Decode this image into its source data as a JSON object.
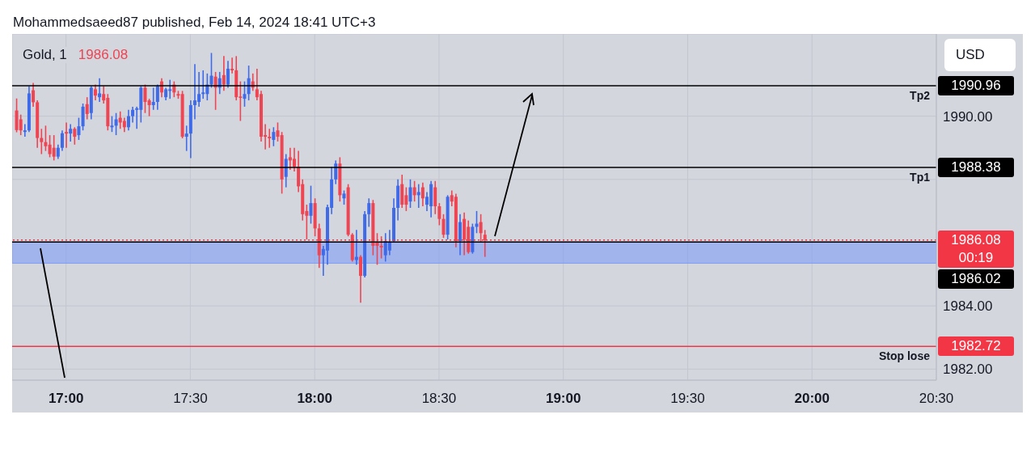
{
  "chart_data": {
    "type": "candlestick",
    "title": "Mohammedsaeed87 published, Feb 14, 2024 18:41 UTC+3",
    "subtitle": "Gold, 1",
    "annotations": [
      "1986.08",
      "USD",
      "00:19",
      {
        "text": "Tp2",
        "y": 1990.96
      },
      {
        "text": "Tp1",
        "y": 1988.38
      },
      {
        "text": "Stop lose",
        "y": 1982.72
      }
    ],
    "x": [
      "2024-02-14T16:48",
      "2024-02-14T16:49",
      "2024-02-14T16:50",
      "2024-02-14T16:51",
      "2024-02-14T16:52",
      "2024-02-14T16:53",
      "2024-02-14T16:54",
      "2024-02-14T16:55",
      "2024-02-14T16:56",
      "2024-02-14T16:57",
      "2024-02-14T16:58",
      "2024-02-14T16:59",
      "2024-02-14T17:00",
      "2024-02-14T17:01",
      "2024-02-14T17:02",
      "2024-02-14T17:03",
      "2024-02-14T17:04",
      "2024-02-14T17:05",
      "2024-02-14T17:06",
      "2024-02-14T17:07",
      "2024-02-14T17:08",
      "2024-02-14T17:09",
      "2024-02-14T17:10",
      "2024-02-14T17:11",
      "2024-02-14T17:12",
      "2024-02-14T17:13",
      "2024-02-14T17:14",
      "2024-02-14T17:15",
      "2024-02-14T17:16",
      "2024-02-14T17:17",
      "2024-02-14T17:18",
      "2024-02-14T17:19",
      "2024-02-14T17:20",
      "2024-02-14T17:21",
      "2024-02-14T17:22",
      "2024-02-14T17:23",
      "2024-02-14T17:24",
      "2024-02-14T17:25",
      "2024-02-14T17:26",
      "2024-02-14T17:27",
      "2024-02-14T17:28",
      "2024-02-14T17:29",
      "2024-02-14T17:30",
      "2024-02-14T17:31",
      "2024-02-14T17:32",
      "2024-02-14T17:33",
      "2024-02-14T17:34",
      "2024-02-14T17:35",
      "2024-02-14T17:36",
      "2024-02-14T17:37",
      "2024-02-14T17:38",
      "2024-02-14T17:39",
      "2024-02-14T17:40",
      "2024-02-14T17:41",
      "2024-02-14T17:42",
      "2024-02-14T17:43",
      "2024-02-14T17:44",
      "2024-02-14T17:45",
      "2024-02-14T17:46",
      "2024-02-14T17:47",
      "2024-02-14T17:48",
      "2024-02-14T17:49",
      "2024-02-14T17:50",
      "2024-02-14T17:51",
      "2024-02-14T17:52",
      "2024-02-14T17:53",
      "2024-02-14T17:54",
      "2024-02-14T17:55",
      "2024-02-14T17:56",
      "2024-02-14T17:57",
      "2024-02-14T17:58",
      "2024-02-14T17:59",
      "2024-02-14T18:00",
      "2024-02-14T18:01",
      "2024-02-14T18:02",
      "2024-02-14T18:03",
      "2024-02-14T18:04",
      "2024-02-14T18:05",
      "2024-02-14T18:06",
      "2024-02-14T18:07",
      "2024-02-14T18:08",
      "2024-02-14T18:09",
      "2024-02-14T18:10",
      "2024-02-14T18:11",
      "2024-02-14T18:12",
      "2024-02-14T18:13",
      "2024-02-14T18:14",
      "2024-02-14T18:15",
      "2024-02-14T18:16",
      "2024-02-14T18:17",
      "2024-02-14T18:18",
      "2024-02-14T18:19",
      "2024-02-14T18:20",
      "2024-02-14T18:21",
      "2024-02-14T18:22",
      "2024-02-14T18:23",
      "2024-02-14T18:24",
      "2024-02-14T18:25",
      "2024-02-14T18:26",
      "2024-02-14T18:27",
      "2024-02-14T18:28",
      "2024-02-14T18:29",
      "2024-02-14T18:30",
      "2024-02-14T18:31",
      "2024-02-14T18:32",
      "2024-02-14T18:33",
      "2024-02-14T18:34",
      "2024-02-14T18:35",
      "2024-02-14T18:36",
      "2024-02-14T18:37",
      "2024-02-14T18:38",
      "2024-02-14T18:39",
      "2024-02-14T18:40",
      "2024-02-14T18:41"
    ],
    "ohlc": [
      [
        1990.18,
        1990.56,
        1989.49,
        1989.56
      ],
      [
        1989.9,
        1990.05,
        1989.4,
        1989.55
      ],
      [
        1989.5,
        1989.75,
        1989.35,
        1989.55
      ],
      [
        1989.55,
        1990.95,
        1989.5,
        1990.72
      ],
      [
        1990.82,
        1991.05,
        1990.3,
        1990.44
      ],
      [
        1990.44,
        1990.5,
        1989,
        1989.31
      ],
      [
        1989.31,
        1989.6,
        1988.8,
        1989.18
      ],
      [
        1989.18,
        1989.7,
        1988.9,
        1989.05
      ],
      [
        1989.1,
        1989.4,
        1988.7,
        1988.8
      ],
      [
        1989,
        1989.4,
        1988.6,
        1988.72
      ],
      [
        1988.72,
        1989.1,
        1988.65,
        1989
      ],
      [
        1989,
        1989.55,
        1988.9,
        1989.46
      ],
      [
        1989.5,
        1989.8,
        1989,
        1989.45
      ],
      [
        1989.45,
        1989.75,
        1989.2,
        1989.6
      ],
      [
        1989.6,
        1989.65,
        1989.1,
        1989.35
      ],
      [
        1989.4,
        1989.95,
        1989.25,
        1989.68
      ],
      [
        1989.68,
        1990.4,
        1989.55,
        1990.3
      ],
      [
        1990.38,
        1990.6,
        1989.9,
        1990.07
      ],
      [
        1990.1,
        1990.95,
        1989.9,
        1990.9
      ],
      [
        1990.85,
        1991,
        1990.5,
        1990.65
      ],
      [
        1990.6,
        1991.2,
        1990.45,
        1990.72
      ],
      [
        1990.7,
        1990.95,
        1990.4,
        1990.5
      ],
      [
        1990.58,
        1990.7,
        1989.55,
        1989.68
      ],
      [
        1989.65,
        1990,
        1989.5,
        1989.7
      ],
      [
        1989.7,
        1990.1,
        1989.4,
        1989.9
      ],
      [
        1989.95,
        1990.15,
        1989.6,
        1989.8
      ],
      [
        1989.85,
        1989.95,
        1989.5,
        1989.65
      ],
      [
        1989.65,
        1990.2,
        1989.55,
        1990
      ],
      [
        1990,
        1990.3,
        1989.8,
        1990.2
      ],
      [
        1990.2,
        1990.3,
        1989.6,
        1990.25
      ],
      [
        1990.2,
        1990.95,
        1989.8,
        1990.9
      ],
      [
        1990.9,
        1991,
        1990.1,
        1990.45
      ],
      [
        1990.5,
        1990.55,
        1990,
        1990.35
      ],
      [
        1990.35,
        1990.9,
        1990.2,
        1990.45
      ],
      [
        1990.45,
        1991,
        1990.2,
        1990.95
      ],
      [
        1991.1,
        1991.2,
        1990.6,
        1990.75
      ],
      [
        1990.6,
        1990.9,
        1990.5,
        1990.85
      ],
      [
        1990.8,
        1991.15,
        1990.55,
        1990.85
      ],
      [
        1991,
        1991.1,
        1990.6,
        1990.75
      ],
      [
        1990.7,
        1990.8,
        1990.55,
        1990.65
      ],
      [
        1990.7,
        1990.8,
        1989.3,
        1989.35
      ],
      [
        1989.35,
        1989.7,
        1988.9,
        1989.45
      ],
      [
        1989.45,
        1990.5,
        1988.67,
        1990.35
      ],
      [
        1990.35,
        1991.65,
        1989.9,
        1990.5
      ],
      [
        1990.45,
        1991.4,
        1990.3,
        1990.7
      ],
      [
        1990.7,
        1991.45,
        1990.55,
        1990.75
      ],
      [
        1990.7,
        1991.35,
        1990.5,
        1991
      ],
      [
        1991,
        1992,
        1990.9,
        1991.28
      ],
      [
        1991.25,
        1991.4,
        1990.2,
        1990.9
      ],
      [
        1990.9,
        1991.4,
        1990.7,
        1991.2
      ],
      [
        1991.3,
        1991.9,
        1990.8,
        1991
      ],
      [
        1991,
        1991.75,
        1990.9,
        1991.5
      ],
      [
        1991.5,
        1991.85,
        1991.35,
        1991.45
      ],
      [
        1991.45,
        1991.9,
        1990.5,
        1990.6
      ],
      [
        1990.62,
        1991.1,
        1989.85,
        1990.58
      ],
      [
        1990.55,
        1991.1,
        1990.3,
        1990.7
      ],
      [
        1990.7,
        1991.6,
        1990.5,
        1991.2
      ],
      [
        1991.1,
        1991.35,
        1990.8,
        1990.9
      ],
      [
        1990.85,
        1991.5,
        1990.5,
        1990.6
      ],
      [
        1990.7,
        1990.8,
        1989.2,
        1989.35
      ],
      [
        1989.4,
        1989.75,
        1988.95,
        1989.35
      ],
      [
        1989.35,
        1989.6,
        1989,
        1989.3
      ],
      [
        1989.25,
        1989.65,
        1989.05,
        1989.5
      ],
      [
        1989.55,
        1989.8,
        1989.2,
        1989.35
      ],
      [
        1989.4,
        1989.5,
        1987.55,
        1988
      ],
      [
        1988.08,
        1988.8,
        1987.75,
        1988.65
      ],
      [
        1988.7,
        1989,
        1988.3,
        1988.6
      ],
      [
        1988.65,
        1989,
        1988.25,
        1988.4
      ],
      [
        1988.4,
        1988.9,
        1987.6,
        1987.78
      ],
      [
        1987.85,
        1988,
        1986.7,
        1986.9
      ],
      [
        1987,
        1987.2,
        1986.1,
        1986.85
      ],
      [
        1986.85,
        1987.8,
        1986.6,
        1987.25
      ],
      [
        1987.25,
        1987.4,
        1986.2,
        1986.45
      ],
      [
        1986.45,
        1986.6,
        1985.2,
        1985.6
      ],
      [
        1985.6,
        1985.9,
        1984.95,
        1985.8
      ],
      [
        1985.75,
        1987.2,
        1985.3,
        1987.12
      ],
      [
        1987.1,
        1988.4,
        1986.9,
        1988
      ],
      [
        1988,
        1988.6,
        1987.85,
        1988.5
      ],
      [
        1988.5,
        1988.7,
        1987.3,
        1987.5
      ],
      [
        1987.4,
        1987.65,
        1987.2,
        1987.55
      ],
      [
        1987.75,
        1987.85,
        1986.2,
        1986.25
      ],
      [
        1986.25,
        1986.3,
        1985.4,
        1985.45
      ],
      [
        1985.45,
        1986.4,
        1985.3,
        1985.55
      ],
      [
        1985.55,
        1985.6,
        1984.1,
        1984.95
      ],
      [
        1984.95,
        1987,
        1984.9,
        1986.9
      ],
      [
        1986.9,
        1987.4,
        1986.5,
        1987.25
      ],
      [
        1987.25,
        1987.35,
        1985.6,
        1985.9
      ],
      [
        1986,
        1986.3,
        1985.3,
        1985.9
      ],
      [
        1985.9,
        1986.2,
        1985.5,
        1985.85
      ],
      [
        1985.6,
        1986.3,
        1985.4,
        1986.05
      ],
      [
        1985.75,
        1986.4,
        1985.6,
        1986
      ],
      [
        1986.05,
        1987.4,
        1986,
        1987.1
      ],
      [
        1987.1,
        1988,
        1986.7,
        1987.8
      ],
      [
        1987.85,
        1988.15,
        1987.1,
        1987.2
      ],
      [
        1987.5,
        1987.75,
        1987,
        1987.2
      ],
      [
        1987.3,
        1988,
        1987.1,
        1987.75
      ],
      [
        1987.75,
        1987.95,
        1987.3,
        1987.5
      ],
      [
        1987.5,
        1987.85,
        1987.1,
        1987.6
      ],
      [
        1987.75,
        1987.9,
        1987.15,
        1987.4
      ],
      [
        1987.2,
        1987.6,
        1987,
        1987.45
      ],
      [
        1987.15,
        1987.95,
        1986.8,
        1987.85
      ],
      [
        1987.75,
        1987.95,
        1986.9,
        1987.15
      ],
      [
        1987.15,
        1987.25,
        1986.55,
        1986.75
      ],
      [
        1986.75,
        1986.9,
        1986.15,
        1986.25
      ],
      [
        1986.25,
        1987.5,
        1986.1,
        1987.45
      ],
      [
        1987.5,
        1987.65,
        1987.15,
        1987.3
      ],
      [
        1987.45,
        1987.55,
        1985.85,
        1986.05
      ],
      [
        1986.05,
        1986.9,
        1985.6,
        1986.65
      ],
      [
        1986.75,
        1986.95,
        1985.6,
        1986.1
      ],
      [
        1986.5,
        1986.7,
        1985.65,
        1985.7
      ],
      [
        1985.7,
        1986.6,
        1985.65,
        1986.5
      ],
      [
        1986.5,
        1987,
        1986.3,
        1986.6
      ],
      [
        1986.65,
        1986.9,
        1986,
        1986.3
      ],
      [
        1986.25,
        1986.4,
        1985.55,
        1986.08
      ]
    ],
    "xlim": [
      "2024-02-14T16:47",
      "2024-02-14T20:30"
    ],
    "xticks": [
      {
        "value": "2024-02-14T17:00",
        "label": "17:00"
      },
      {
        "value": "2024-02-14T17:30",
        "label": "17:30"
      },
      {
        "value": "2024-02-14T18:00",
        "label": "18:00"
      },
      {
        "value": "2024-02-14T18:30",
        "label": "18:30"
      },
      {
        "value": "2024-02-14T19:00",
        "label": "19:00"
      },
      {
        "value": "2024-02-14T19:30",
        "label": "19:30"
      },
      {
        "value": "2024-02-14T20:00",
        "label": "20:00"
      },
      {
        "value": "2024-02-14T20:30",
        "label": "20:30"
      }
    ],
    "ylim": [
      1981.65,
      1992.6
    ],
    "yticks": [
      {
        "value": 1982,
        "label": "1982.00"
      },
      {
        "value": 1984,
        "label": "1984.00"
      },
      {
        "value": 1988,
        "label": null
      },
      {
        "value": 1990,
        "label": "1990.00"
      }
    ],
    "grid": true,
    "ref_lines": [
      {
        "axis": "y",
        "value": 1990.96,
        "label": "1990.96",
        "color": "#000000",
        "line_style": "solid"
      },
      {
        "axis": "y",
        "value": 1988.38,
        "label": "1988.38",
        "color": "#000000",
        "line_style": "solid"
      },
      {
        "axis": "y",
        "value": 1986.08,
        "label": "1986.08",
        "color": "#f23645",
        "line_style": "dotted"
      },
      {
        "axis": "y",
        "value": 1986.02,
        "label": "1986.02",
        "color": "#000000",
        "line_style": "solid"
      },
      {
        "axis": "y",
        "value": 1982.72,
        "label": "1982.72",
        "color": "#f23645",
        "line_style": "solid"
      }
    ],
    "bands": [
      {
        "axis": "y",
        "from": 1985.35,
        "to": 1986.02,
        "color": "#7f9cf5"
      }
    ]
  }
}
